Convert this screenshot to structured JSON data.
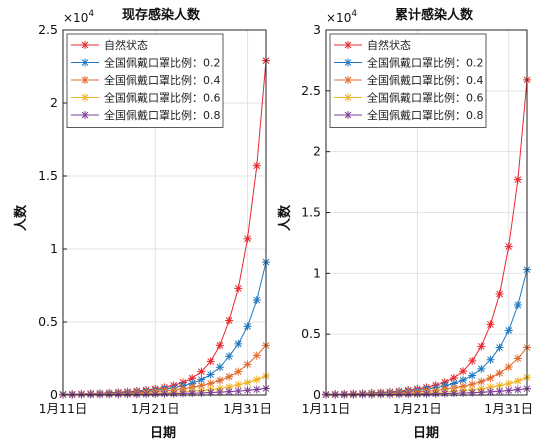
{
  "chart_data": [
    {
      "type": "line",
      "title": "现存感染人数",
      "xlabel": "日期",
      "ylabel": "人数",
      "exponent_label": "×10",
      "exponent_power": "4",
      "x_ticks": [
        "1月11日",
        "1月21日",
        "1月31日"
      ],
      "xlim": [
        "1月11日",
        "2月2日"
      ],
      "ylim": [
        0,
        2.5
      ],
      "y_ticks": [
        "0",
        "0.5",
        "1",
        "1.5",
        "2",
        "2.5"
      ],
      "y_unit_note": "values in units of 10^4",
      "grid": true,
      "legend_position": "top-left",
      "x": [
        "1月11日",
        "1月12日",
        "1月13日",
        "1月14日",
        "1月15日",
        "1月16日",
        "1月17日",
        "1月18日",
        "1月19日",
        "1月20日",
        "1月21日",
        "1月22日",
        "1月23日",
        "1月24日",
        "1月25日",
        "1月26日",
        "1月27日",
        "1月28日",
        "1月29日",
        "1月30日",
        "1月31日",
        "2月1日",
        "2月2日"
      ],
      "series": [
        {
          "name": "自然状态",
          "color": "#e8282d",
          "values": [
            0.005,
            0.006,
            0.008,
            0.01,
            0.012,
            0.015,
            0.019,
            0.023,
            0.028,
            0.034,
            0.042,
            0.052,
            0.066,
            0.086,
            0.115,
            0.16,
            0.23,
            0.34,
            0.51,
            0.73,
            1.07,
            1.57,
            2.29
          ]
        },
        {
          "name": "全国佩戴口罩比例：0.2",
          "color": "#1f78c1",
          "values": [
            0.004,
            0.005,
            0.006,
            0.008,
            0.01,
            0.012,
            0.015,
            0.018,
            0.022,
            0.027,
            0.033,
            0.04,
            0.05,
            0.063,
            0.08,
            0.105,
            0.14,
            0.19,
            0.265,
            0.35,
            0.47,
            0.65,
            0.91
          ]
        },
        {
          "name": "全国佩戴口罩比例：0.4",
          "color": "#e26a2c",
          "values": [
            0.003,
            0.004,
            0.005,
            0.006,
            0.007,
            0.009,
            0.011,
            0.013,
            0.016,
            0.019,
            0.023,
            0.028,
            0.034,
            0.042,
            0.052,
            0.064,
            0.08,
            0.1,
            0.125,
            0.16,
            0.21,
            0.27,
            0.34
          ]
        },
        {
          "name": "全国佩戴口罩比例：0.6",
          "color": "#f0b323",
          "values": [
            0.003,
            0.003,
            0.004,
            0.004,
            0.005,
            0.006,
            0.007,
            0.008,
            0.009,
            0.011,
            0.013,
            0.015,
            0.018,
            0.021,
            0.025,
            0.03,
            0.036,
            0.045,
            0.055,
            0.07,
            0.085,
            0.105,
            0.13
          ]
        },
        {
          "name": "全国佩戴口罩比例：0.8",
          "color": "#7e3f98",
          "values": [
            0.002,
            0.002,
            0.003,
            0.003,
            0.003,
            0.004,
            0.004,
            0.005,
            0.005,
            0.006,
            0.007,
            0.008,
            0.009,
            0.011,
            0.012,
            0.014,
            0.017,
            0.02,
            0.023,
            0.027,
            0.032,
            0.038,
            0.045
          ]
        }
      ]
    },
    {
      "type": "line",
      "title": "累计感染人数",
      "xlabel": "日期",
      "ylabel": "人数",
      "exponent_label": "×10",
      "exponent_power": "4",
      "x_ticks": [
        "1月11日",
        "1月21日",
        "1月31日"
      ],
      "xlim": [
        "1月11日",
        "2月2日"
      ],
      "ylim": [
        0,
        3
      ],
      "y_ticks": [
        "0",
        "0.5",
        "1",
        "1.5",
        "2",
        "2.5",
        "3"
      ],
      "y_unit_note": "values in units of 10^4",
      "grid": true,
      "legend_position": "top-left",
      "x": [
        "1月11日",
        "1月12日",
        "1月13日",
        "1月14日",
        "1月15日",
        "1月16日",
        "1月17日",
        "1月18日",
        "1月19日",
        "1月20日",
        "1月21日",
        "1月22日",
        "1月23日",
        "1月24日",
        "1月25日",
        "1月26日",
        "1月27日",
        "1月28日",
        "1月29日",
        "1月30日",
        "1月31日",
        "2月1日",
        "2月2日"
      ],
      "series": [
        {
          "name": "自然状态",
          "color": "#e8282d",
          "values": [
            0.006,
            0.007,
            0.009,
            0.011,
            0.014,
            0.017,
            0.021,
            0.026,
            0.032,
            0.04,
            0.05,
            0.063,
            0.08,
            0.105,
            0.14,
            0.195,
            0.28,
            0.4,
            0.58,
            0.83,
            1.22,
            1.77,
            2.59
          ]
        },
        {
          "name": "全国佩戴口罩比例：0.2",
          "color": "#1f78c1",
          "values": [
            0.005,
            0.006,
            0.007,
            0.009,
            0.011,
            0.014,
            0.017,
            0.021,
            0.026,
            0.032,
            0.039,
            0.048,
            0.06,
            0.075,
            0.095,
            0.122,
            0.16,
            0.215,
            0.29,
            0.39,
            0.53,
            0.74,
            1.03
          ]
        },
        {
          "name": "全国佩戴口罩比例：0.4",
          "color": "#e26a2c",
          "values": [
            0.004,
            0.005,
            0.006,
            0.007,
            0.008,
            0.01,
            0.012,
            0.015,
            0.018,
            0.022,
            0.026,
            0.031,
            0.038,
            0.047,
            0.058,
            0.071,
            0.088,
            0.11,
            0.14,
            0.18,
            0.23,
            0.3,
            0.39
          ]
        },
        {
          "name": "全国佩戴口罩比例：0.6",
          "color": "#f0b323",
          "values": [
            0.003,
            0.004,
            0.004,
            0.005,
            0.006,
            0.007,
            0.008,
            0.009,
            0.011,
            0.013,
            0.015,
            0.018,
            0.021,
            0.025,
            0.03,
            0.036,
            0.043,
            0.052,
            0.063,
            0.077,
            0.093,
            0.115,
            0.145
          ]
        },
        {
          "name": "全国佩戴口罩比例：0.8",
          "color": "#7e3f98",
          "values": [
            0.002,
            0.003,
            0.003,
            0.003,
            0.004,
            0.004,
            0.005,
            0.005,
            0.006,
            0.007,
            0.008,
            0.009,
            0.01,
            0.012,
            0.014,
            0.016,
            0.019,
            0.022,
            0.026,
            0.031,
            0.037,
            0.044,
            0.052
          ]
        }
      ]
    }
  ]
}
